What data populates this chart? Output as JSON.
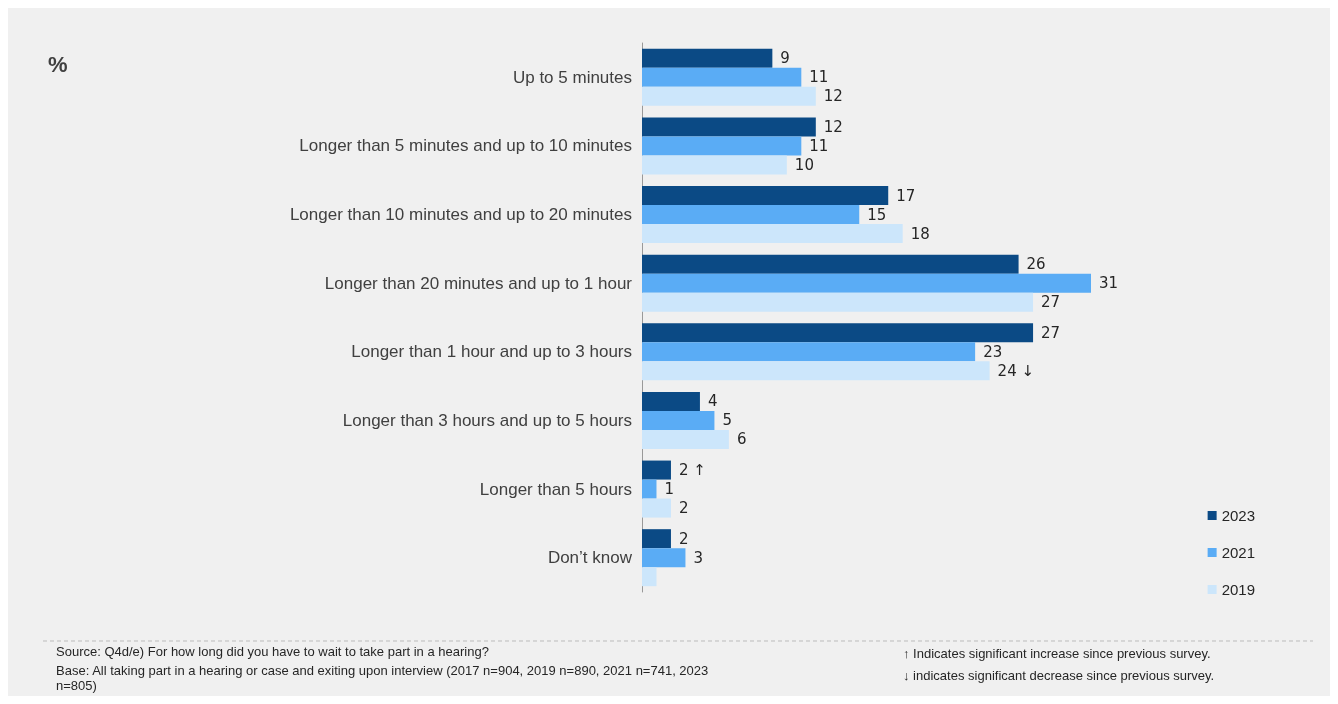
{
  "chart_data": {
    "type": "bar",
    "orientation": "horizontal",
    "title": "%",
    "categories": [
      "Up to 5 minutes",
      "Longer than 5 minutes and up to 10 minutes",
      "Longer than 10 minutes and up to 20 minutes",
      "Longer than 20 minutes and up to 1 hour",
      "Longer than 1 hour and up to 3 hours",
      "Longer than 3 hours and up to 5 hours",
      "Longer than 5 hours",
      "Don’t know"
    ],
    "series": [
      {
        "name": "2023",
        "color": "#0b4a85",
        "values": [
          9,
          12,
          17,
          26,
          27,
          4,
          2,
          2
        ],
        "value_labels": [
          "9",
          "12",
          "17",
          "26",
          "27",
          "4",
          "2 ↑",
          "2"
        ]
      },
      {
        "name": "2021",
        "color": "#5aacf5",
        "values": [
          11,
          11,
          15,
          31,
          23,
          5,
          1,
          3
        ],
        "value_labels": [
          "11",
          "11",
          "15",
          "31",
          "23",
          "5",
          "1",
          "3"
        ]
      },
      {
        "name": "2019",
        "color": "#cce6fb",
        "values": [
          12,
          10,
          18,
          27,
          24,
          6,
          2,
          1
        ],
        "value_labels": [
          "12",
          "10",
          "18",
          "27",
          "24 ↓",
          "6",
          "2",
          null
        ]
      }
    ],
    "legend": "bottom right",
    "annotations": [
      "Source: Q4d/e) For how long did you have to wait to take part in a hearing?",
      "Base: All taking part in a hearing or case and exiting upon interview (2017 n=904, 2019 n=890, 2021 n=741, 2023 n=805)",
      "↑ Indicates significant increase since previous survey.",
      "↓ indicates significant decrease since previous survey."
    ]
  }
}
